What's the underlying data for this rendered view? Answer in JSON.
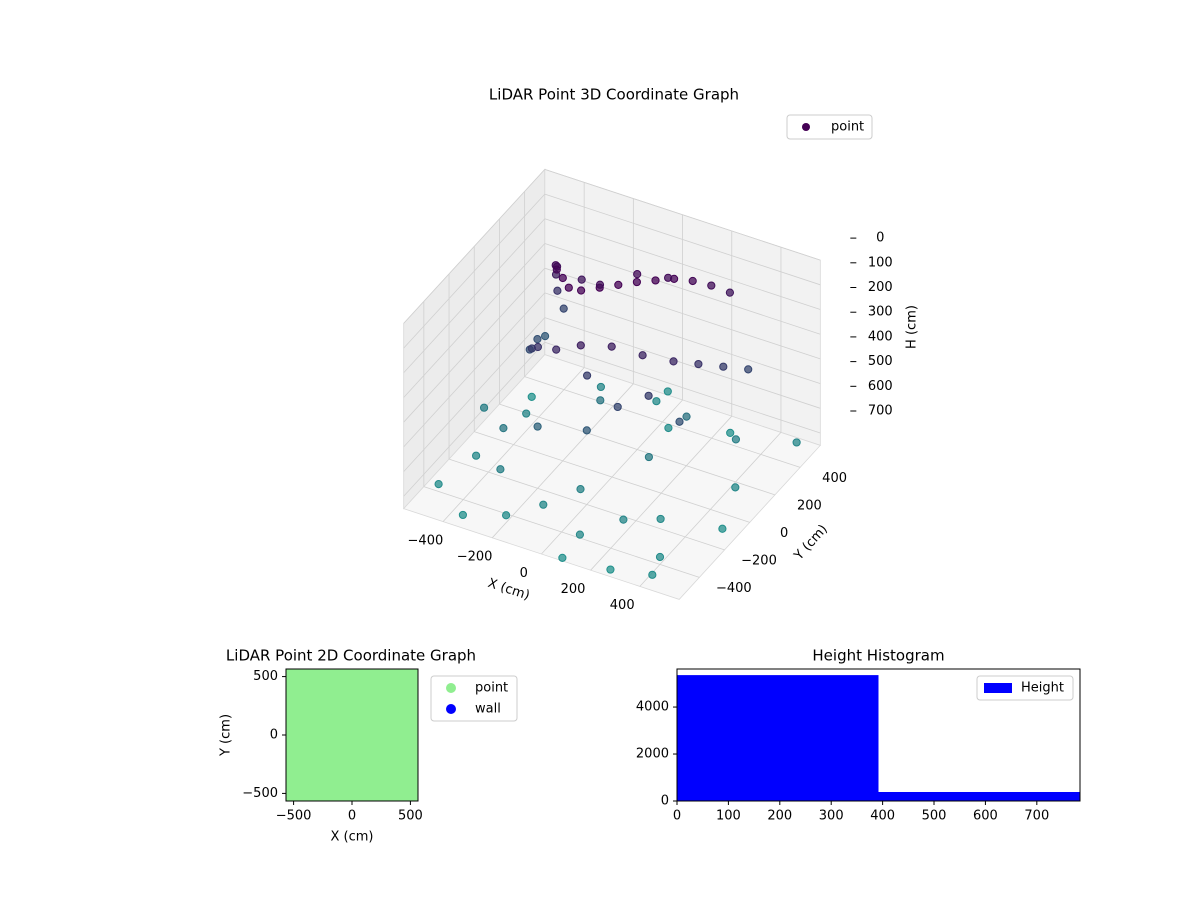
{
  "chart_data": [
    {
      "type": "scatter3d",
      "title": "LiDAR Point 3D Coordinate Graph",
      "xlabel": "X (cm)",
      "ylabel": "Y (cm)",
      "zlabel": "H (cm)",
      "xlim": [
        -560,
        560
      ],
      "ylim": [
        -560,
        560
      ],
      "zlim": [
        0,
        750
      ],
      "z_inverted": true,
      "xticks": [
        {
          "value": -400,
          "label": "−400"
        },
        {
          "value": -200,
          "label": "−200"
        },
        0,
        200,
        400
      ],
      "yticks": [
        {
          "value": -400,
          "label": "−400"
        },
        {
          "value": -200,
          "label": "−200"
        },
        0,
        200,
        400
      ],
      "zticks": [
        0,
        100,
        200,
        300,
        400,
        500,
        600,
        700
      ],
      "colormap": [
        "#440154",
        "#21918c"
      ],
      "legend": "upper right",
      "series": [
        {
          "name": "point",
          "color": "#440154",
          "x": [
            -350,
            -350,
            -330,
            -300,
            -280,
            -250,
            -200,
            -150,
            -100,
            -50,
            0,
            50,
            100,
            150,
            200,
            250,
            300,
            -400,
            -380,
            -360,
            -300,
            -250,
            -150,
            -50,
            50,
            150,
            250,
            300,
            350,
            400,
            -200,
            -100,
            0,
            100,
            -50,
            100,
            200,
            0,
            -200,
            300,
            -500,
            -450,
            -400,
            -350,
            -300,
            -250,
            -200,
            -150,
            -100,
            -50,
            0,
            50,
            100,
            150,
            200,
            250,
            300,
            350,
            400,
            450,
            500,
            -480,
            420,
            520,
            -520,
            80,
            -60,
            260,
            -380,
            180
          ],
          "y": [
            300,
            250,
            200,
            150,
            100,
            50,
            0,
            -50,
            -50,
            0,
            50,
            100,
            150,
            200,
            250,
            300,
            350,
            250,
            150,
            50,
            -50,
            -100,
            -150,
            -150,
            -100,
            -50,
            0,
            100,
            200,
            300,
            150,
            100,
            200,
            250,
            -100,
            -150,
            -100,
            -200,
            -200,
            -50,
            -400,
            -200,
            100,
            -500,
            -300,
            400,
            -450,
            200,
            -350,
            450,
            -250,
            350,
            -450,
            0,
            -300,
            450,
            -200,
            300,
            -400,
            100,
            -100,
            300,
            -500,
            450,
            0,
            -550,
            560,
            -520,
            -120,
            240
          ],
          "h": [
            350,
            250,
            150,
            80,
            40,
            20,
            10,
            5,
            0,
            0,
            0,
            0,
            5,
            10,
            30,
            60,
            100,
            450,
            400,
            380,
            300,
            250,
            200,
            150,
            150,
            180,
            200,
            250,
            300,
            350,
            100,
            60,
            40,
            50,
            300,
            350,
            300,
            450,
            500,
            400,
            720,
            700,
            680,
            740,
            650,
            690,
            720,
            600,
            700,
            710,
            660,
            730,
            700,
            620,
            690,
            740,
            710,
            650,
            720,
            700,
            740,
            750,
            730,
            690,
            640,
            745,
            735,
            750,
            610,
            580
          ]
        }
      ]
    },
    {
      "type": "scatter",
      "title": "LiDAR Point 2D Coordinate Graph",
      "xlabel": "X (cm)",
      "ylabel": "Y (cm)",
      "xlim": [
        -565,
        565
      ],
      "ylim": [
        -565,
        565
      ],
      "xticks": [
        {
          "value": -500,
          "label": "−500"
        },
        0,
        500
      ],
      "yticks": [
        {
          "value": -500,
          "label": "−500"
        },
        0,
        500
      ],
      "legend": "outside right",
      "series": [
        {
          "name": "point",
          "color": "#90ee90",
          "x": [
            -500,
            -300,
            -100,
            100,
            300,
            500,
            -500,
            -300,
            -100,
            100,
            300,
            500,
            -500,
            -300,
            -100,
            100,
            300,
            500,
            -500,
            -300,
            -100,
            100,
            300,
            500,
            -500,
            -300,
            -100,
            100,
            300,
            500,
            -500,
            -300,
            -100,
            100,
            300,
            500
          ],
          "y": [
            -500,
            -500,
            -500,
            -500,
            -500,
            -500,
            -300,
            -300,
            -300,
            -300,
            -300,
            -300,
            -100,
            -100,
            -100,
            -100,
            -100,
            -100,
            100,
            100,
            100,
            100,
            100,
            100,
            300,
            300,
            300,
            300,
            300,
            300,
            500,
            500,
            500,
            500,
            500,
            500
          ]
        },
        {
          "name": "wall",
          "color": "#0000ff",
          "x": [],
          "y": []
        }
      ]
    },
    {
      "type": "histogram",
      "title": "Height Histogram",
      "bins": [
        0,
        392,
        784
      ],
      "xlim": [
        0,
        784
      ],
      "ylim": [
        0,
        5620
      ],
      "xticks": [
        0,
        100,
        200,
        300,
        400,
        500,
        600,
        700
      ],
      "yticks": [
        0,
        2000,
        4000
      ],
      "legend": "upper right",
      "series": [
        {
          "name": "Height",
          "color": "#0000ff",
          "values": [
            5360,
            383
          ]
        }
      ]
    }
  ]
}
